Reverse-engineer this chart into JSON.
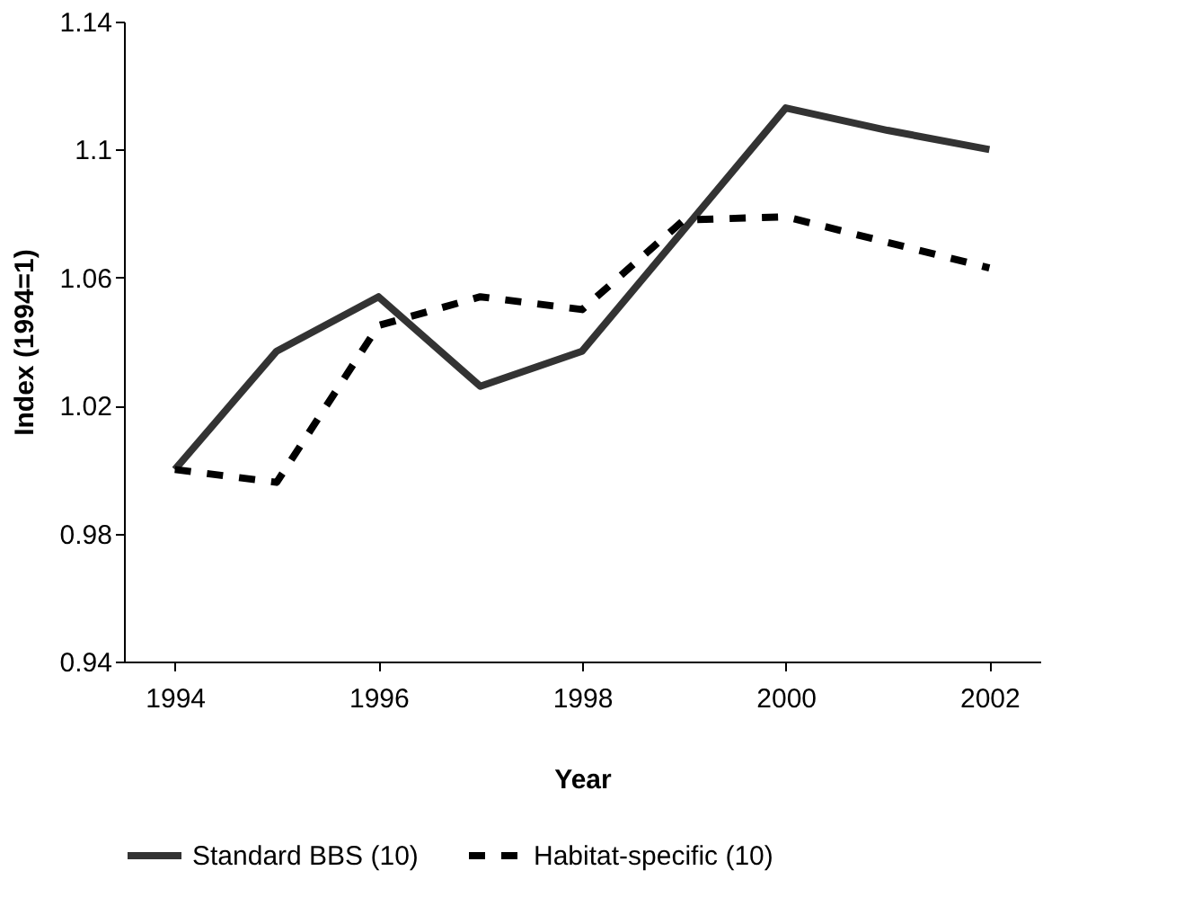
{
  "chart_data": {
    "type": "line",
    "xlabel": "Year",
    "ylabel": "Index (1994=1)",
    "x": [
      1994,
      1995,
      1996,
      1997,
      1998,
      1999,
      2000,
      2001,
      2002
    ],
    "series": [
      {
        "name": "Standard BBS (10)",
        "color": "#333333",
        "line_style": "solid",
        "values": [
          1.0,
          1.037,
          1.054,
          1.026,
          1.037,
          1.075,
          1.113,
          1.106,
          1.1
        ]
      },
      {
        "name": "Habitat-specific (10)",
        "color": "#000000",
        "line_style": "dashed",
        "values": [
          1.0,
          0.996,
          1.045,
          1.054,
          1.05,
          1.078,
          1.079,
          1.071,
          1.063
        ]
      }
    ],
    "xlim": [
      1993.5,
      2002.5
    ],
    "xticks": [
      1994,
      1996,
      1998,
      2000,
      2002
    ],
    "ylim": [
      0.94,
      1.14
    ],
    "yticks": [
      0.94,
      0.98,
      1.02,
      1.06,
      1.1,
      1.14
    ],
    "grid": false,
    "legend": "bottom",
    "marker": "none"
  }
}
